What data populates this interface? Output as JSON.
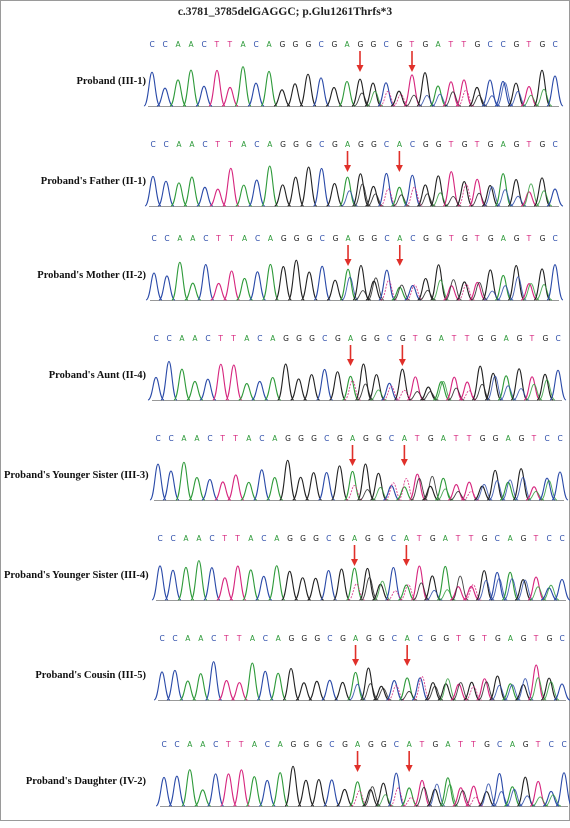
{
  "title": "c.3781_3785delGAGGC; p.Glu1261Thrfs*3",
  "colors": {
    "A": "#2e9a3a",
    "C": "#2a4aa8",
    "G": "#222222",
    "T": "#d6267e",
    "arrow": "#e0302a"
  },
  "panels": [
    {
      "label": "Proband (III-1)",
      "sequence": "CCAACTTACAGGGCGAGGCGTGATTGCCGTGC",
      "arrow_positions": [
        16,
        20
      ]
    },
    {
      "label": "Proband's Father (II-1)",
      "sequence": "CCAACTTACAGGGCGAGGCACGGTGTGAGTGC",
      "arrow_positions": [
        15,
        19
      ]
    },
    {
      "label": "Proband's Mother (II-2)",
      "sequence": "CCAACTTACAGGGCGAGGCACGGTGTGAGTGC",
      "arrow_positions": [
        15,
        19
      ]
    },
    {
      "label": "Proband's Aunt (II-4)",
      "sequence": "CCAACTTACAGGGCGAGGCGTGATTGGAGTGC",
      "arrow_positions": [
        15,
        19
      ]
    },
    {
      "label": "Proband's Younger Sister (III-3)",
      "sequence": "CCAACTTACAGGGCGAGGCATGATTGGAGTCC",
      "arrow_positions": [
        15,
        19
      ]
    },
    {
      "label": "Proband's Younger Sister (III-4)",
      "sequence": "CCAACTTACAGGGCGAGGCATGATTGCAGTCC",
      "arrow_positions": [
        15,
        19
      ]
    },
    {
      "label": "Proband's Cousin (III-5)",
      "sequence": "CCAACTTACAGGGCGAGGCACGGTGTGAGTGC",
      "arrow_positions": [
        15,
        19
      ]
    },
    {
      "label": "Proband's Daughter (IV-2)",
      "sequence": "CCAACTTACAGGGCGAGGCATGATTGCAGTCC",
      "arrow_positions": [
        15,
        19
      ]
    }
  ]
}
